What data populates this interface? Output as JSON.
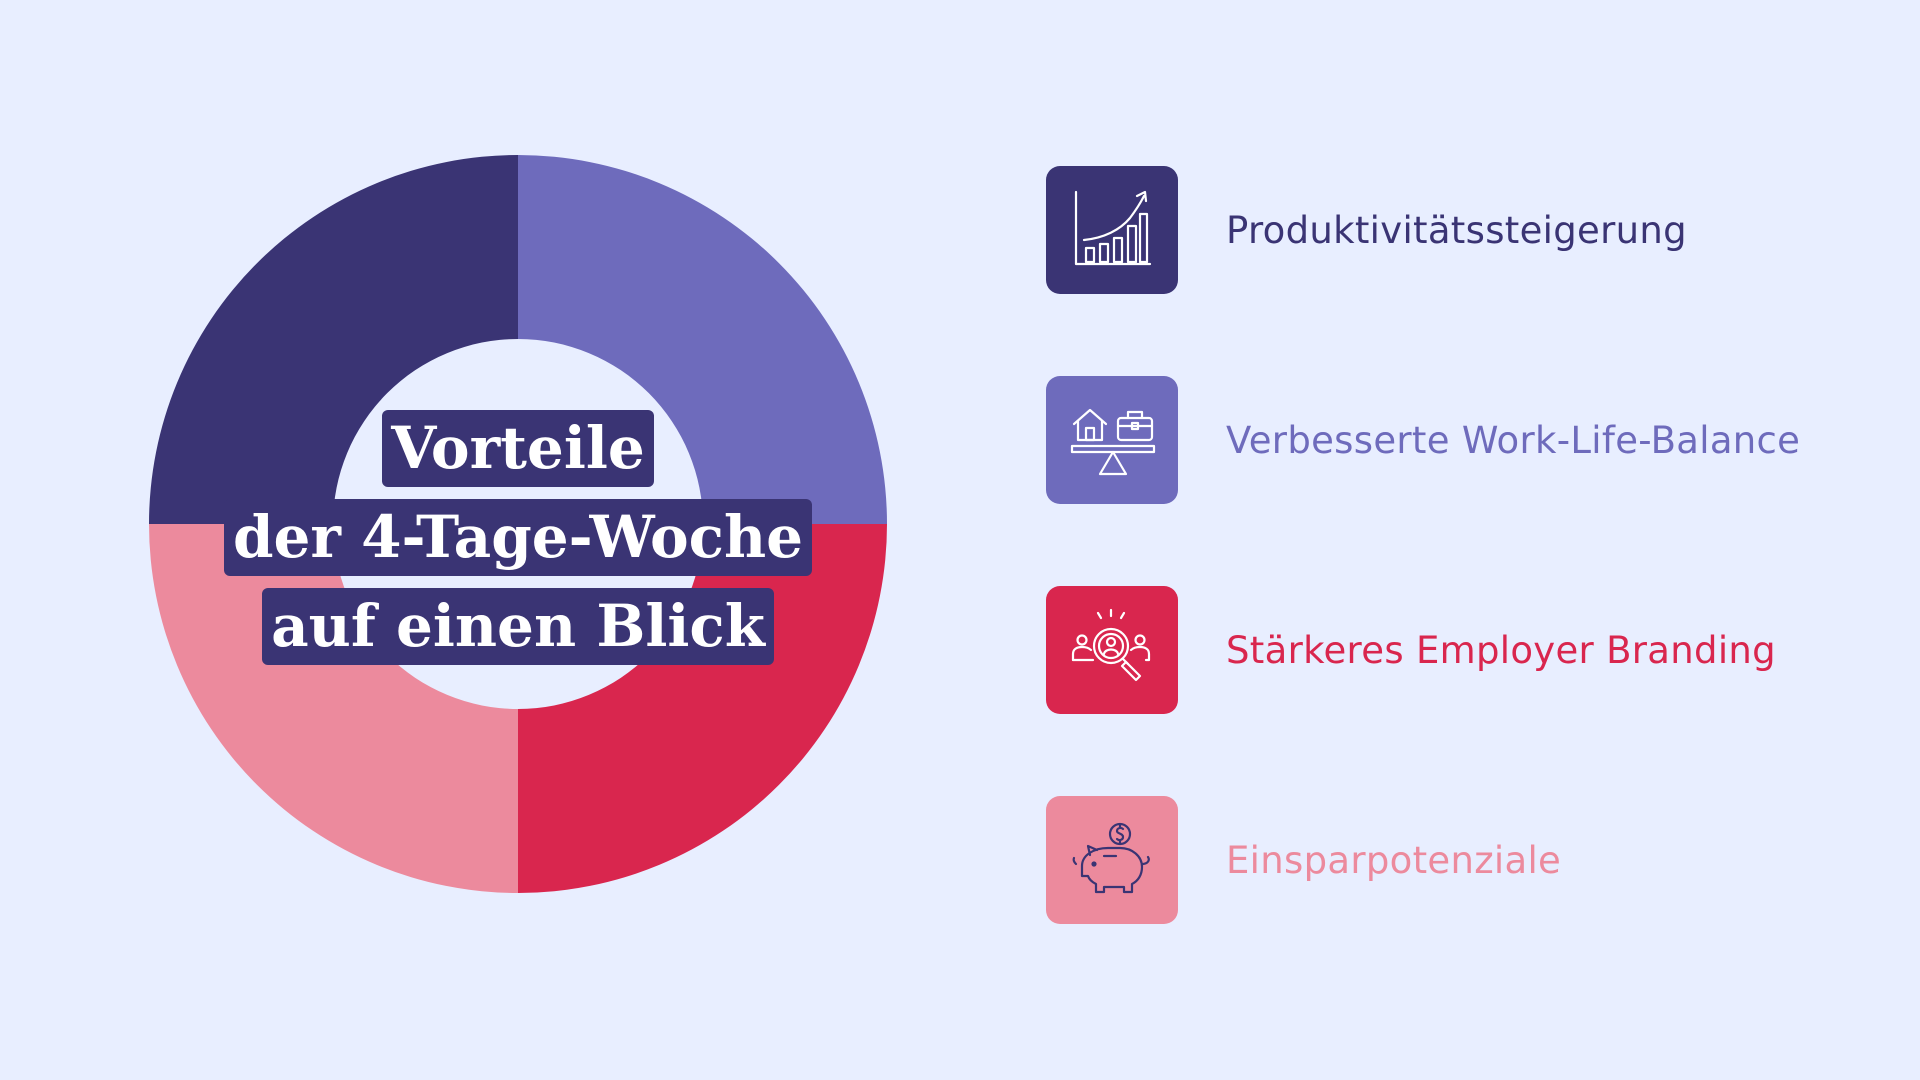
{
  "background": "#E8EEFF",
  "title": {
    "lines": [
      "Vorteile",
      "der 4-Tage-Woche",
      "auf einen Blick"
    ],
    "box_color": "#3A3474",
    "text_color": "#FFFFFF"
  },
  "chart_data": {
    "type": "pie",
    "donut": true,
    "slices": [
      {
        "category": "Produktivitätssteigerung",
        "value": 25,
        "color": "#6E6BBC"
      },
      {
        "category": "Stärkeres Employer Branding",
        "value": 25,
        "color": "#D9264E"
      },
      {
        "category": "Einsparpotenziale",
        "value": 25,
        "color": "#EC8A9D"
      },
      {
        "category": "Verbesserte Work-Life-Balance",
        "value": 25,
        "color": "#3A3474"
      }
    ]
  },
  "benefits": [
    {
      "label": "Produktivitätssteigerung",
      "icon": "growth-chart-icon",
      "color": "#3A3474"
    },
    {
      "label": "Verbesserte Work-Life-Balance",
      "icon": "work-life-balance-scale-icon",
      "color": "#6E6BBC"
    },
    {
      "label": "Stärkeres Employer Branding",
      "icon": "employer-branding-search-icon",
      "color": "#D9264E"
    },
    {
      "label": "Einsparpotenziale",
      "icon": "piggy-bank-icon",
      "color": "#EC8A9D"
    }
  ]
}
